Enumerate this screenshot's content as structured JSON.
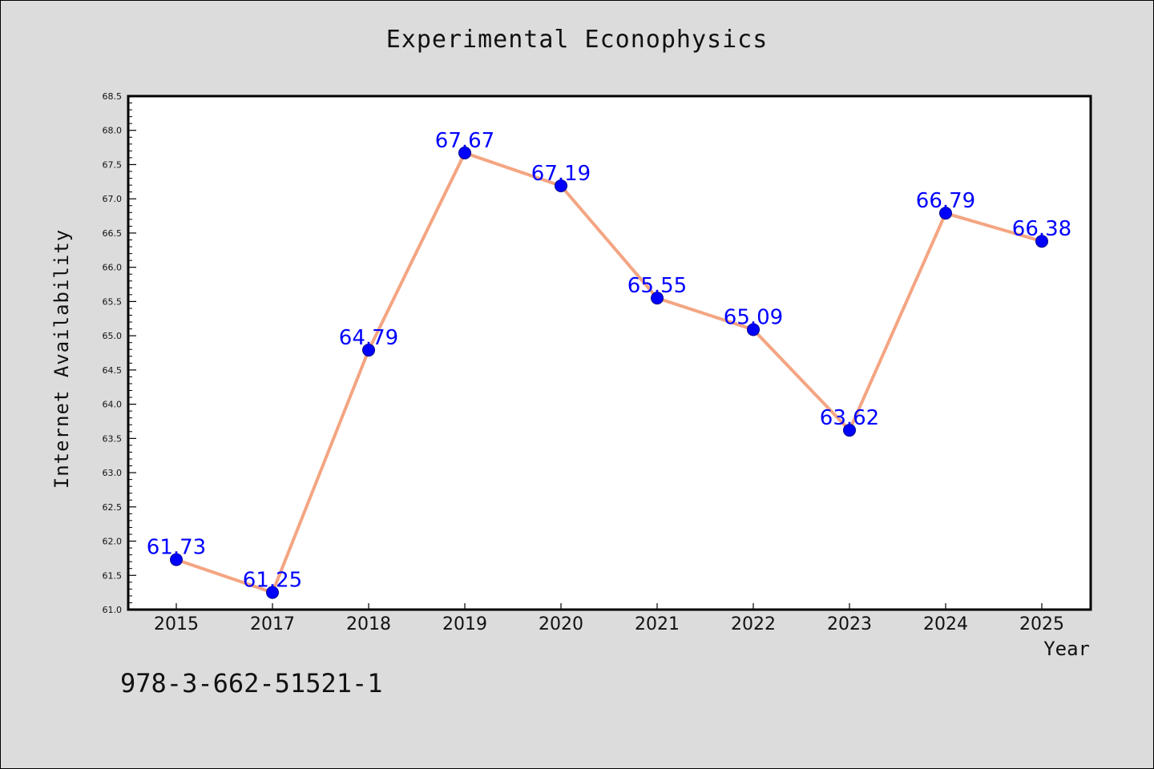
{
  "chart_data": {
    "type": "line",
    "title": "Experimental Econophysics",
    "xlabel": "Year",
    "ylabel": "Internet Availability",
    "categories": [
      "2015",
      "2017",
      "2018",
      "2019",
      "2020",
      "2021",
      "2022",
      "2023",
      "2024",
      "2025"
    ],
    "series": [
      {
        "values": [
          61.73,
          61.25,
          64.79,
          67.67,
          67.19,
          65.55,
          65.09,
          63.62,
          66.79,
          66.38
        ],
        "line_color": "#f4a582",
        "marker_color": "#0000ff"
      }
    ],
    "data_labels": [
      "61.73",
      "61.25",
      "64.79",
      "67.67",
      "67.19",
      "65.55",
      "65.09",
      "63.62",
      "66.79",
      "66.38"
    ],
    "ylim": [
      61.0,
      68.5
    ],
    "yticks": [
      "61.0",
      "61.5",
      "62.0",
      "62.5",
      "63.0",
      "63.5",
      "64.0",
      "64.5",
      "65.0",
      "65.5",
      "66.0",
      "66.5",
      "67.0",
      "67.5",
      "68.0",
      "68.5"
    ],
    "grid": false,
    "legend": "none"
  },
  "footer": {
    "isbn": "978-3-662-51521-1"
  }
}
